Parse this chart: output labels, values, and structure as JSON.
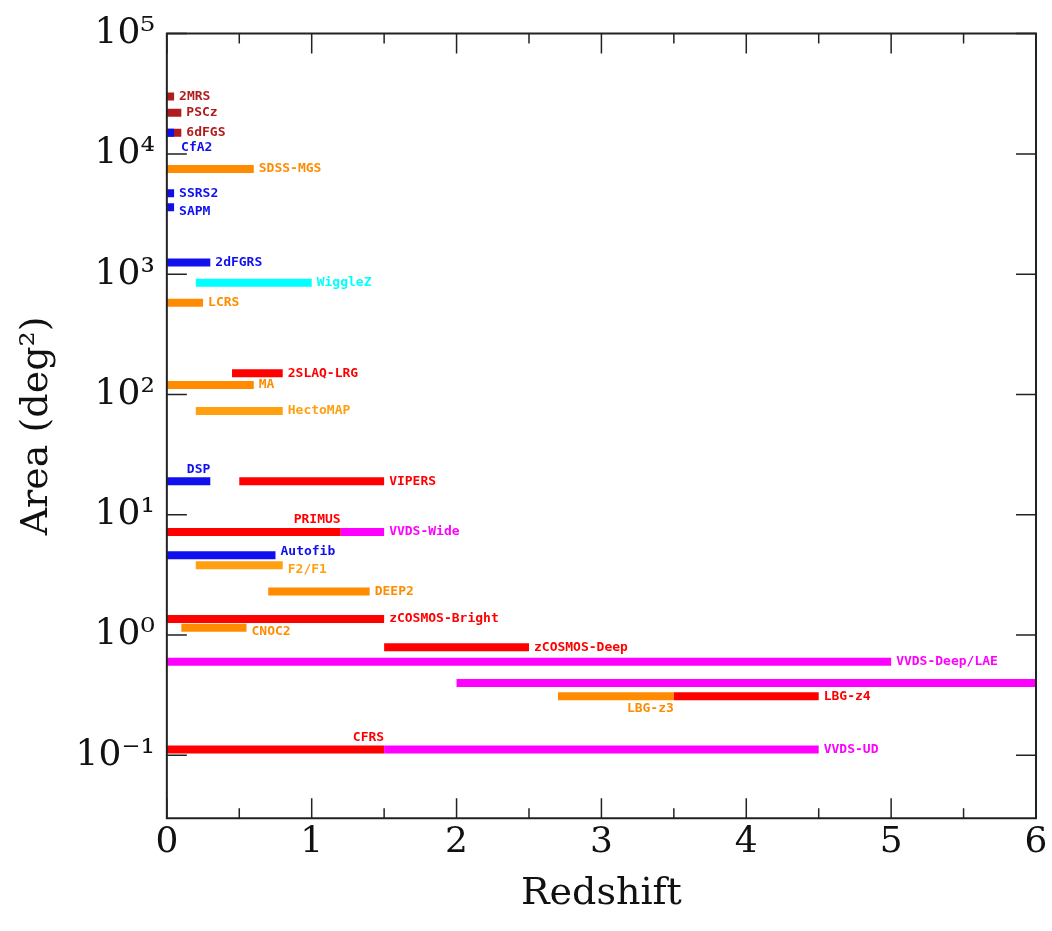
{
  "chart_data": {
    "type": "line",
    "xlabel": "Redshift",
    "ylabel": "Area (deg²)",
    "log": "y",
    "grid": false,
    "legend": false,
    "marker": "none",
    "xlim": [
      0,
      6
    ],
    "ylim": [
      0.03,
      100000
    ],
    "xticks": [
      0,
      {
        "value": 0.5,
        "label": null
      },
      1,
      {
        "value": 1.5,
        "label": null
      },
      2,
      {
        "value": 2.5,
        "label": null
      },
      3,
      {
        "value": 3.5,
        "label": null
      },
      4,
      {
        "value": 4.5,
        "label": null
      },
      5,
      {
        "value": 5.5,
        "label": null
      },
      6
    ],
    "yticks": [
      {
        "value": 0.1,
        "label": "10⁻¹"
      },
      {
        "value": 1,
        "label": "10⁰"
      },
      {
        "value": 10,
        "label": "10¹"
      },
      {
        "value": 100,
        "label": "10²"
      },
      {
        "value": 1000,
        "label": "10³"
      },
      {
        "value": 10000,
        "label": "10⁴"
      },
      {
        "value": 100000,
        "label": "10⁵"
      }
    ],
    "series": [
      {
        "name": "PSCz",
        "color": "#b01c1c",
        "x": [
          0,
          0.1
        ],
        "values": [
          22000,
          22000
        ]
      },
      {
        "name": "2MRS",
        "color": "#b01c1c",
        "x": [
          0,
          0.05
        ],
        "values": [
          30000,
          30000
        ]
      },
      {
        "name": "6dFGS",
        "color": "#b01c1c",
        "x": [
          0,
          0.1
        ],
        "values": [
          15000,
          15000
        ]
      },
      {
        "name": "CfA2",
        "color": "#1010ee",
        "x": [
          0,
          0.05
        ],
        "values": [
          15000,
          15000
        ]
      },
      {
        "name": "SDSS-MGS",
        "color": "#ff8c00",
        "x": [
          0,
          0.6
        ],
        "values": [
          7500,
          7500
        ]
      },
      {
        "name": "SSRS2",
        "color": "#1010ee",
        "x": [
          0,
          0.05
        ],
        "values": [
          4700,
          4700
        ]
      },
      {
        "name": "SAPM",
        "color": "#1010ee",
        "x": [
          0,
          0.05
        ],
        "values": [
          3600,
          3600
        ]
      },
      {
        "name": "2dFGRS",
        "color": "#1010ee",
        "x": [
          0,
          0.3
        ],
        "values": [
          1250,
          1250
        ]
      },
      {
        "name": "WiggleZ",
        "color": "#00ffff",
        "x": [
          0.2,
          1.0
        ],
        "values": [
          850,
          850
        ]
      },
      {
        "name": "LCRS",
        "color": "#ff8c00",
        "x": [
          0,
          0.25
        ],
        "values": [
          580,
          580
        ]
      },
      {
        "name": "2SLAQ-LRG",
        "color": "#ff0000",
        "x": [
          0.45,
          0.8
        ],
        "values": [
          150,
          150
        ]
      },
      {
        "name": "MA",
        "color": "#ff8c00",
        "x": [
          0,
          0.6
        ],
        "values": [
          120,
          120
        ]
      },
      {
        "name": "HectoMAP",
        "color": "#ffa010",
        "x": [
          0.2,
          0.8
        ],
        "values": [
          73,
          73
        ]
      },
      {
        "name": "DSP",
        "color": "#1010ee",
        "x": [
          0,
          0.3
        ],
        "values": [
          19,
          19
        ]
      },
      {
        "name": "VIPERS",
        "color": "#ff0000",
        "x": [
          0.5,
          1.5
        ],
        "values": [
          19,
          19
        ]
      },
      {
        "name": "VVDS-Wide",
        "color": "#ff00ff",
        "x": [
          1.2,
          1.5
        ],
        "values": [
          7.2,
          7.2
        ]
      },
      {
        "name": "PRIMUS",
        "color": "#ff0000",
        "x": [
          0,
          1.2
        ],
        "values": [
          7.2,
          7.2
        ]
      },
      {
        "name": "Autofib",
        "color": "#1010ee",
        "x": [
          0,
          0.75
        ],
        "values": [
          4.6,
          4.6
        ]
      },
      {
        "name": "F2/F1",
        "color": "#ffa010",
        "x": [
          0.2,
          0.8
        ],
        "values": [
          3.8,
          3.8
        ]
      },
      {
        "name": "DEEP2",
        "color": "#ff8c00",
        "x": [
          0.7,
          1.4
        ],
        "values": [
          2.3,
          2.3
        ]
      },
      {
        "name": "zCOSMOS-Bright",
        "color": "#ff0000",
        "x": [
          0,
          1.5
        ],
        "values": [
          1.36,
          1.36
        ]
      },
      {
        "name": "CNOC2",
        "color": "#ff8c00",
        "x": [
          0.1,
          0.55
        ],
        "values": [
          1.15,
          1.15
        ]
      },
      {
        "name": "zCOSMOS-Deep",
        "color": "#ff0000",
        "x": [
          1.5,
          2.5
        ],
        "values": [
          0.79,
          0.79
        ]
      },
      {
        "name": "VVDS-Deep/LAE",
        "color": "#ff00ff",
        "x": [
          0,
          5
        ],
        "values": [
          0.6,
          0.6
        ]
      },
      {
        "color": "#ff00ff",
        "x": [
          2,
          6
        ],
        "values": [
          0.4,
          0.4
        ]
      },
      {
        "name": "LBG-z3",
        "color": "#ff8c00",
        "x": [
          2.7,
          3.5
        ],
        "values": [
          0.31,
          0.31
        ]
      },
      {
        "name": "LBG-z4",
        "color": "#ff0000",
        "x": [
          3.5,
          4.5
        ],
        "values": [
          0.31,
          0.31
        ]
      },
      {
        "name": "CFRS",
        "color": "#ff0000",
        "x": [
          0,
          1.5
        ],
        "values": [
          0.112,
          0.112
        ]
      },
      {
        "name": "VVDS-UD",
        "color": "#ff00ff",
        "x": [
          1.5,
          4.5
        ],
        "values": [
          0.112,
          0.112
        ]
      }
    ]
  }
}
